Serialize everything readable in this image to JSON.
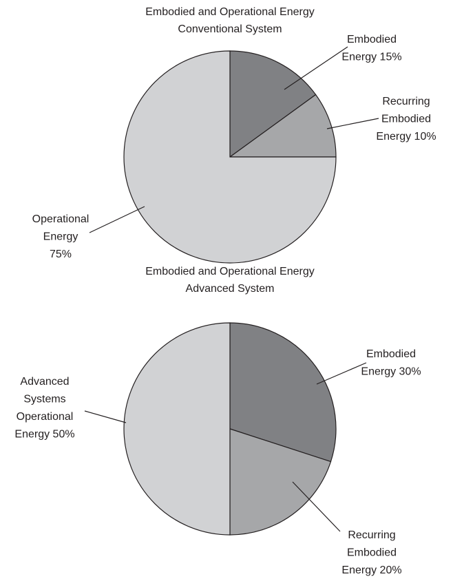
{
  "chart_data": [
    {
      "type": "pie",
      "title": [
        "Embodied and Operational Energy",
        "Conventional System"
      ],
      "categories": [
        "Embodied Energy",
        "Recurring Embodied Energy",
        "Operational Energy"
      ],
      "values": [
        15,
        10,
        75
      ],
      "value_labels": [
        [
          "Embodied",
          "Energy 15%"
        ],
        [
          "Recurring",
          "Embodied",
          "Energy 10%"
        ],
        [
          "Operational",
          "Energy",
          "75%"
        ]
      ],
      "colors": [
        "#808184",
        "#a6a7a9",
        "#d1d2d4"
      ]
    },
    {
      "type": "pie",
      "title": [
        "Embodied and Operational Energy",
        "Advanced System"
      ],
      "categories": [
        "Embodied Energy",
        "Recurring Embodied Energy",
        "Advanced Systems Operational Energy"
      ],
      "values": [
        30,
        20,
        50
      ],
      "value_labels": [
        [
          "Embodied",
          "Energy 30%"
        ],
        [
          "Recurring",
          "Embodied",
          "Energy 20%"
        ],
        [
          "Advanced",
          "Systems",
          "Operational",
          "Energy 50%"
        ]
      ],
      "colors": [
        "#808184",
        "#a6a7a9",
        "#d1d2d4"
      ]
    }
  ]
}
